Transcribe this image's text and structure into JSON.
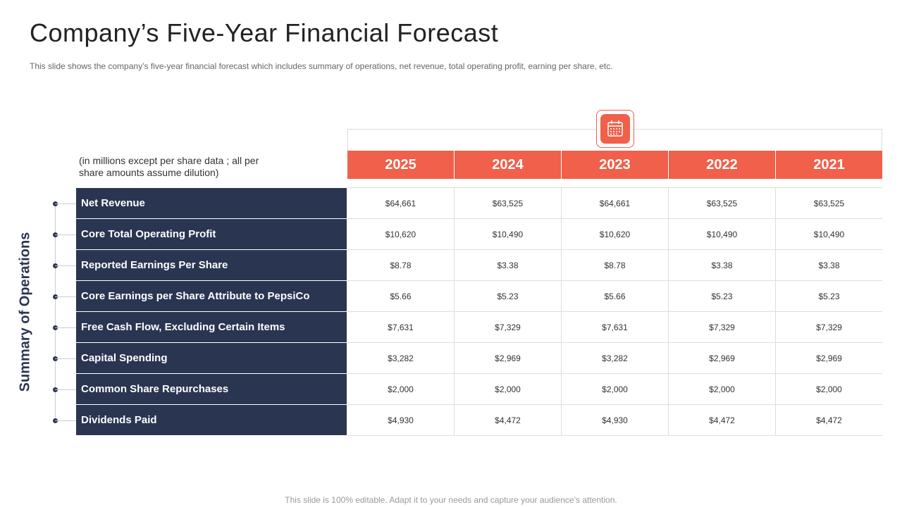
{
  "title": "Company’s Five-Year Financial Forecast",
  "subtitle": "This slide shows the company’s five-year  financial forecast which includes summary of operations, net revenue,  total operating profit, earning per share, etc.",
  "note": "(in millions except per share data ; all per share amounts assume dilution)",
  "side_label": "Summary of Operations",
  "table": {
    "columns": [
      "2025",
      "2024",
      "2023",
      "2022",
      "2021"
    ],
    "rows": [
      {
        "label": "Net Revenue",
        "values": [
          "$64,661",
          "$63,525",
          "$64,661",
          "$63,525",
          "$63,525"
        ]
      },
      {
        "label": "Core Total Operating Profit",
        "values": [
          "$10,620",
          "$10,490",
          "$10,620",
          "$10,490",
          "$10,490"
        ]
      },
      {
        "label": "Reported Earnings Per Share",
        "values": [
          "$8.78",
          "$3.38",
          "$8.78",
          "$3.38",
          "$3.38"
        ]
      },
      {
        "label": "Core Earnings per Share Attribute to PepsiCo",
        "values": [
          "$5.66",
          "$5.23",
          "$5.66",
          "$5.23",
          "$5.23"
        ]
      },
      {
        "label": "Free Cash Flow, Excluding Certain Items",
        "values": [
          "$7,631",
          "$7,329",
          "$7,631",
          "$7,329",
          "$7,329"
        ]
      },
      {
        "label": "Capital Spending",
        "values": [
          "$3,282",
          "$2,969",
          "$3,282",
          "$2,969",
          "$2,969"
        ]
      },
      {
        "label": "Common Share Repurchases",
        "values": [
          "$2,000",
          "$2,000",
          "$2,000",
          "$2,000",
          "$2,000"
        ]
      },
      {
        "label": "Dividends Paid",
        "values": [
          "$4,930",
          "$4,472",
          "$4,930",
          "$4,472",
          "$4,472"
        ]
      }
    ]
  },
  "footer": "This slide is 100% editable. Adapt it to your needs and capture your audience’s attention."
}
